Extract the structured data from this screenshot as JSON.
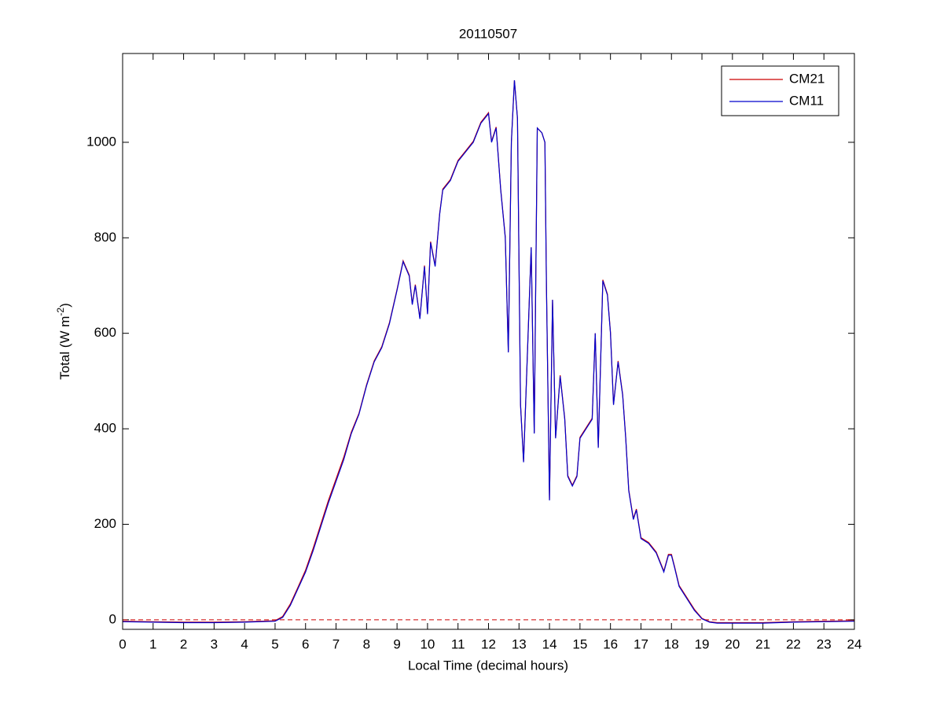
{
  "chart_data": {
    "type": "line",
    "title": "20110507",
    "xlabel": "Local Time (decimal hours)",
    "ylabel": {
      "text": "Total (W m",
      "superscript": "-2",
      "suffix": ")"
    },
    "x": [
      0,
      1,
      2,
      3,
      4,
      5,
      5.25,
      5.5,
      5.75,
      6,
      6.25,
      6.5,
      6.75,
      7,
      7.25,
      7.5,
      7.75,
      8,
      8.25,
      8.5,
      8.75,
      9,
      9.2,
      9.4,
      9.5,
      9.6,
      9.75,
      9.9,
      10,
      10.1,
      10.25,
      10.4,
      10.5,
      10.75,
      11,
      11.25,
      11.5,
      11.75,
      12,
      12.1,
      12.25,
      12.4,
      12.55,
      12.65,
      12.75,
      12.85,
      12.95,
      13.05,
      13.15,
      13.3,
      13.4,
      13.5,
      13.6,
      13.75,
      13.85,
      13.9,
      14,
      14.1,
      14.2,
      14.35,
      14.5,
      14.6,
      14.75,
      14.9,
      15,
      15.2,
      15.4,
      15.5,
      15.6,
      15.75,
      15.9,
      16,
      16.1,
      16.25,
      16.4,
      16.5,
      16.6,
      16.75,
      16.85,
      17,
      17.25,
      17.5,
      17.75,
      17.9,
      18,
      18.1,
      18.25,
      18.5,
      18.75,
      19,
      19.25,
      19.5,
      20,
      21,
      22,
      23,
      24
    ],
    "series": [
      {
        "name": "CM21",
        "color": "#cc0000",
        "values": [
          -3,
          -4,
          -5,
          -5,
          -4,
          -2,
          7,
          33,
          68,
          104,
          150,
          200,
          250,
          295,
          340,
          393,
          432,
          492,
          542,
          572,
          622,
          692,
          752,
          722,
          662,
          702,
          632,
          742,
          642,
          792,
          742,
          852,
          902,
          922,
          962,
          982,
          1002,
          1042,
          1062,
          1002,
          1032,
          902,
          802,
          562,
          1002,
          1130,
          1050,
          452,
          332,
          602,
          780,
          392,
          1030,
          1020,
          1000,
          702,
          252,
          670,
          382,
          512,
          422,
          302,
          282,
          302,
          382,
          402,
          422,
          600,
          362,
          712,
          682,
          602,
          452,
          542,
          472,
          382,
          272,
          212,
          232,
          172,
          162,
          142,
          102,
          137,
          137,
          112,
          72,
          47,
          22,
          3,
          -4,
          -6,
          -6,
          -6,
          -4,
          -3,
          -2
        ]
      },
      {
        "name": "CM11",
        "color": "#0000cc",
        "values": [
          -4,
          -5,
          -6,
          -6,
          -5,
          -3,
          5,
          30,
          65,
          100,
          145,
          195,
          245,
          290,
          335,
          390,
          430,
          490,
          540,
          570,
          620,
          690,
          750,
          720,
          660,
          700,
          630,
          740,
          640,
          790,
          740,
          850,
          900,
          920,
          960,
          980,
          1000,
          1040,
          1060,
          1000,
          1030,
          900,
          800,
          560,
          1000,
          1130,
          1050,
          450,
          330,
          600,
          780,
          390,
          1030,
          1020,
          1000,
          700,
          250,
          670,
          380,
          510,
          420,
          300,
          280,
          300,
          380,
          400,
          420,
          600,
          360,
          710,
          680,
          600,
          450,
          540,
          470,
          380,
          270,
          210,
          230,
          170,
          160,
          140,
          100,
          135,
          135,
          110,
          70,
          45,
          20,
          2,
          -5,
          -7,
          -7,
          -7,
          -5,
          -4,
          -3
        ]
      }
    ],
    "xlim": [
      0,
      24
    ],
    "xticks": [
      0,
      1,
      2,
      3,
      4,
      5,
      6,
      7,
      8,
      9,
      10,
      11,
      12,
      13,
      14,
      15,
      16,
      17,
      18,
      19,
      20,
      21,
      22,
      23,
      24
    ],
    "ylim": [
      -20,
      1186
    ],
    "yticks": [
      0,
      200,
      400,
      600,
      800,
      1000
    ],
    "reference_line": {
      "y": 0,
      "color": "#cc0000"
    },
    "legend": "upper right",
    "grid": false
  }
}
